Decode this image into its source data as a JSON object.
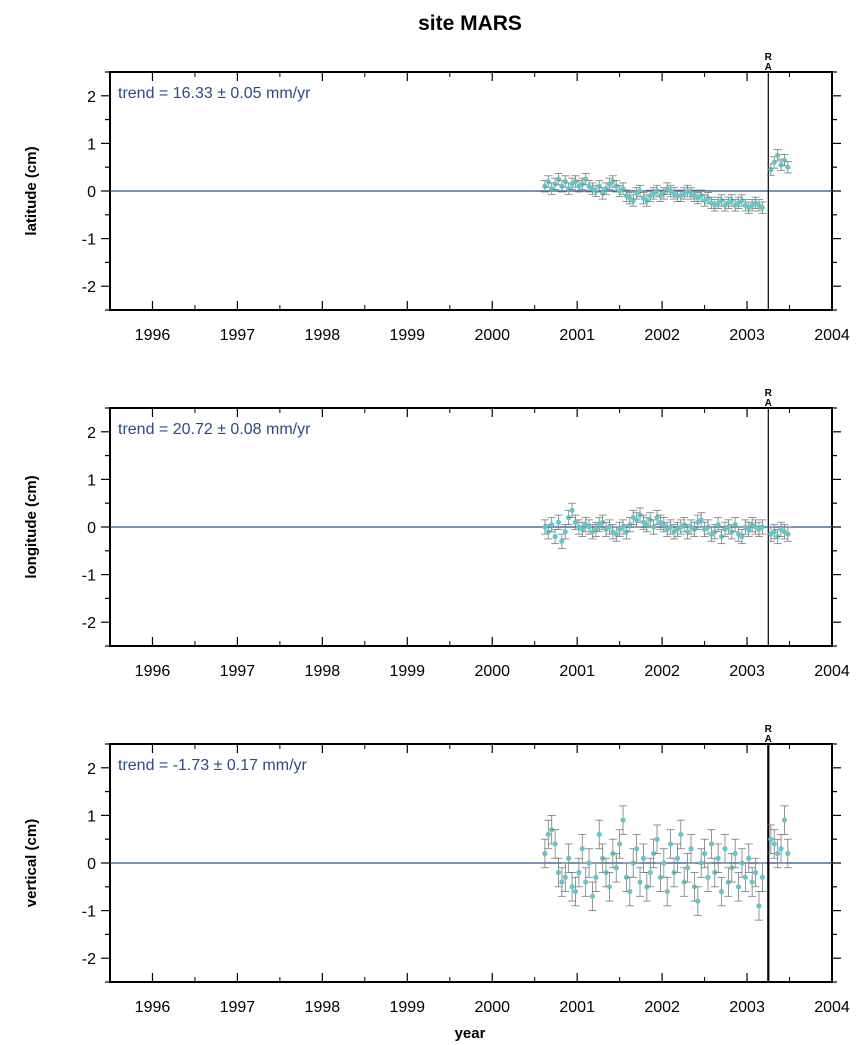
{
  "chart_data": {
    "type": "scatter",
    "title": "site MARS",
    "xlabel": "year",
    "xlim": [
      1995.5,
      2004.0
    ],
    "x_ticks": [
      1996,
      1997,
      1998,
      1999,
      2000,
      2001,
      2002,
      2003,
      2004
    ],
    "y_ticks": [
      2,
      1,
      0,
      -1,
      -2
    ],
    "ylim": [
      -2.5,
      2.5
    ],
    "grid": false,
    "event_marker": {
      "x": 2003.25,
      "labels": [
        "R",
        "A"
      ]
    },
    "colors": {
      "points": "#66c6c6",
      "errorbars": "#7a7a7a",
      "zero_line": "#2b4a8c",
      "trend_text": "#2b4a8c",
      "event_line": "#000000"
    },
    "panels": [
      {
        "ylabel": "latitude (cm)",
        "trend_text": "trend = 16.33 ± 0.05 mm/yr",
        "trend_value": 16.33,
        "trend_sigma": 0.05,
        "trend_units": "mm/yr",
        "error": 0.12,
        "x": [
          2000.62,
          2000.66,
          2000.7,
          2000.74,
          2000.78,
          2000.82,
          2000.86,
          2000.9,
          2000.94,
          2000.98,
          2001.02,
          2001.06,
          2001.1,
          2001.14,
          2001.18,
          2001.22,
          2001.26,
          2001.3,
          2001.34,
          2001.38,
          2001.42,
          2001.46,
          2001.5,
          2001.54,
          2001.58,
          2001.62,
          2001.66,
          2001.7,
          2001.74,
          2001.78,
          2001.82,
          2001.86,
          2001.9,
          2001.94,
          2001.98,
          2002.02,
          2002.06,
          2002.1,
          2002.14,
          2002.18,
          2002.22,
          2002.26,
          2002.3,
          2002.34,
          2002.38,
          2002.42,
          2002.46,
          2002.5,
          2002.54,
          2002.58,
          2002.62,
          2002.66,
          2002.7,
          2002.74,
          2002.78,
          2002.82,
          2002.86,
          2002.9,
          2002.94,
          2002.98,
          2003.02,
          2003.06,
          2003.1,
          2003.14,
          2003.18,
          2003.28,
          2003.32,
          2003.36,
          2003.4,
          2003.44,
          2003.48
        ],
        "y": [
          0.1,
          0.2,
          0.05,
          0.15,
          0.25,
          0.1,
          0.2,
          0.05,
          0.15,
          0.2,
          0.1,
          0.15,
          0.25,
          0.1,
          0.05,
          0.0,
          0.1,
          -0.05,
          0.05,
          0.15,
          0.2,
          0.1,
          0.0,
          0.05,
          -0.1,
          -0.15,
          -0.2,
          -0.05,
          0.0,
          -0.15,
          -0.2,
          -0.1,
          -0.05,
          0.0,
          -0.1,
          -0.05,
          0.05,
          0.0,
          -0.05,
          -0.1,
          -0.1,
          -0.05,
          0.0,
          -0.05,
          -0.1,
          -0.15,
          -0.1,
          -0.2,
          -0.15,
          -0.25,
          -0.3,
          -0.25,
          -0.2,
          -0.3,
          -0.25,
          -0.2,
          -0.3,
          -0.25,
          -0.2,
          -0.3,
          -0.35,
          -0.3,
          -0.25,
          -0.3,
          -0.35,
          0.45,
          0.6,
          0.75,
          0.55,
          0.65,
          0.5
        ]
      },
      {
        "ylabel": "longitude (cm)",
        "trend_text": "trend = 20.72 ± 0.08 mm/yr",
        "trend_value": 20.72,
        "trend_sigma": 0.08,
        "trend_units": "mm/yr",
        "error": 0.15,
        "x": [
          2000.62,
          2000.66,
          2000.7,
          2000.74,
          2000.78,
          2000.82,
          2000.86,
          2000.9,
          2000.94,
          2000.98,
          2001.02,
          2001.06,
          2001.1,
          2001.14,
          2001.18,
          2001.22,
          2001.26,
          2001.3,
          2001.34,
          2001.38,
          2001.42,
          2001.46,
          2001.5,
          2001.54,
          2001.58,
          2001.62,
          2001.66,
          2001.7,
          2001.74,
          2001.78,
          2001.82,
          2001.86,
          2001.9,
          2001.94,
          2001.98,
          2002.02,
          2002.06,
          2002.1,
          2002.14,
          2002.18,
          2002.22,
          2002.26,
          2002.3,
          2002.34,
          2002.38,
          2002.42,
          2002.46,
          2002.5,
          2002.54,
          2002.58,
          2002.62,
          2002.66,
          2002.7,
          2002.74,
          2002.78,
          2002.82,
          2002.86,
          2002.9,
          2002.94,
          2002.98,
          2003.02,
          2003.06,
          2003.1,
          2003.14,
          2003.18,
          2003.28,
          2003.32,
          2003.36,
          2003.4,
          2003.44,
          2003.48
        ],
        "y": [
          0.0,
          -0.1,
          0.05,
          -0.2,
          0.1,
          -0.3,
          -0.1,
          0.2,
          0.35,
          0.1,
          0.0,
          -0.05,
          0.05,
          0.0,
          -0.1,
          -0.05,
          0.05,
          0.1,
          -0.05,
          0.0,
          -0.1,
          -0.15,
          -0.05,
          0.0,
          -0.1,
          0.05,
          0.2,
          0.15,
          0.25,
          0.1,
          0.05,
          0.15,
          0.0,
          0.2,
          0.1,
          0.05,
          -0.05,
          0.0,
          -0.1,
          -0.05,
          0.0,
          0.05,
          -0.1,
          0.0,
          -0.05,
          0.1,
          0.15,
          -0.05,
          0.0,
          -0.15,
          -0.1,
          0.05,
          -0.2,
          -0.05,
          0.0,
          -0.1,
          0.05,
          -0.15,
          -0.2,
          0.0,
          -0.05,
          0.05,
          0.0,
          -0.05,
          0.0,
          -0.15,
          -0.1,
          -0.2,
          -0.05,
          -0.1,
          -0.15
        ]
      },
      {
        "ylabel": "vertical (cm)",
        "trend_text": "trend = -1.73 ± 0.17 mm/yr",
        "trend_value": -1.73,
        "trend_sigma": 0.17,
        "trend_units": "mm/yr",
        "error": 0.3,
        "x": [
          2000.62,
          2000.66,
          2000.7,
          2000.74,
          2000.78,
          2000.82,
          2000.86,
          2000.9,
          2000.94,
          2000.98,
          2001.02,
          2001.06,
          2001.1,
          2001.14,
          2001.18,
          2001.22,
          2001.26,
          2001.3,
          2001.34,
          2001.38,
          2001.42,
          2001.46,
          2001.5,
          2001.54,
          2001.58,
          2001.62,
          2001.66,
          2001.7,
          2001.74,
          2001.78,
          2001.82,
          2001.86,
          2001.9,
          2001.94,
          2001.98,
          2002.02,
          2002.06,
          2002.1,
          2002.14,
          2002.18,
          2002.22,
          2002.26,
          2002.3,
          2002.34,
          2002.38,
          2002.42,
          2002.46,
          2002.5,
          2002.54,
          2002.58,
          2002.62,
          2002.66,
          2002.7,
          2002.74,
          2002.78,
          2002.82,
          2002.86,
          2002.9,
          2002.94,
          2002.98,
          2003.02,
          2003.06,
          2003.1,
          2003.14,
          2003.18,
          2003.28,
          2003.32,
          2003.36,
          2003.4,
          2003.44,
          2003.48
        ],
        "y": [
          0.2,
          0.6,
          0.7,
          0.4,
          -0.2,
          -0.4,
          -0.3,
          0.1,
          -0.5,
          -0.6,
          -0.2,
          0.3,
          -0.4,
          0.0,
          -0.7,
          -0.3,
          0.6,
          0.1,
          -0.2,
          -0.5,
          0.2,
          -0.1,
          0.4,
          0.9,
          -0.3,
          -0.6,
          0.0,
          0.3,
          -0.4,
          0.1,
          -0.5,
          -0.2,
          0.2,
          0.5,
          -0.3,
          0.0,
          -0.6,
          0.4,
          -0.2,
          0.1,
          0.6,
          -0.4,
          -0.1,
          0.3,
          -0.5,
          -0.8,
          0.0,
          0.2,
          -0.3,
          0.4,
          -0.2,
          0.1,
          -0.6,
          0.3,
          -0.4,
          -0.1,
          0.2,
          -0.5,
          0.0,
          -0.3,
          0.1,
          -0.4,
          -0.2,
          -0.9,
          -0.3,
          0.5,
          0.4,
          0.2,
          0.3,
          0.9,
          0.2
        ]
      }
    ]
  }
}
